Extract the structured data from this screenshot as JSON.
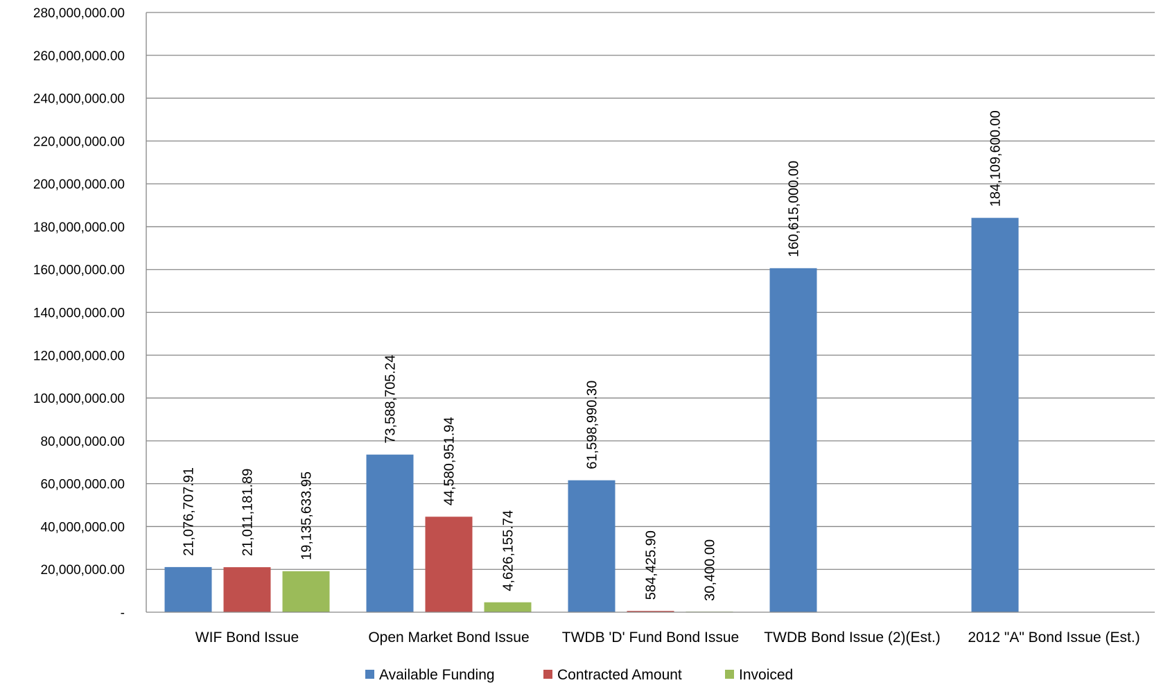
{
  "chart_data": {
    "type": "bar",
    "title": "",
    "xlabel": "",
    "ylabel": "",
    "ylim": [
      0,
      280000000
    ],
    "ytick_values": [
      0,
      20000000,
      40000000,
      60000000,
      80000000,
      100000000,
      120000000,
      140000000,
      160000000,
      180000000,
      200000000,
      220000000,
      240000000,
      260000000,
      280000000
    ],
    "ytick_labels": [
      "-",
      "20,000,000.00",
      "40,000,000.00",
      "60,000,000.00",
      "80,000,000.00",
      "100,000,000.00",
      "120,000,000.00",
      "140,000,000.00",
      "160,000,000.00",
      "180,000,000.00",
      "200,000,000.00",
      "220,000,000.00",
      "240,000,000.00",
      "260,000,000.00",
      "280,000,000.00"
    ],
    "grid": true,
    "legend_position": "bottom",
    "categories": [
      "WIF Bond Issue",
      "Open Market Bond Issue",
      "TWDB 'D' Fund Bond Issue",
      "TWDB Bond Issue (2)(Est.)",
      "2012 \"A\" Bond Issue (Est.)"
    ],
    "series": [
      {
        "name": "Available Funding",
        "color": "#4F81BD",
        "values": [
          21076707.91,
          73588705.24,
          61598990.3,
          160615000.0,
          184109600.0
        ],
        "labels": [
          "21,076,707.91",
          "73,588,705.24",
          "61,598,990.30",
          "160,615,000.00",
          "184,109,600.00"
        ]
      },
      {
        "name": "Contracted Amount",
        "color": "#C0504D",
        "values": [
          21011181.89,
          44580951.94,
          584425.9,
          null,
          null
        ],
        "labels": [
          "21,011,181.89",
          "44,580,951.94",
          "584,425.90",
          null,
          null
        ]
      },
      {
        "name": "Invoiced",
        "color": "#9BBB59",
        "values": [
          19135633.95,
          4626155.74,
          30400.0,
          null,
          null
        ],
        "labels": [
          "19,135,633.95",
          "4,626,155.74",
          "30,400.00",
          null,
          null
        ]
      }
    ]
  }
}
